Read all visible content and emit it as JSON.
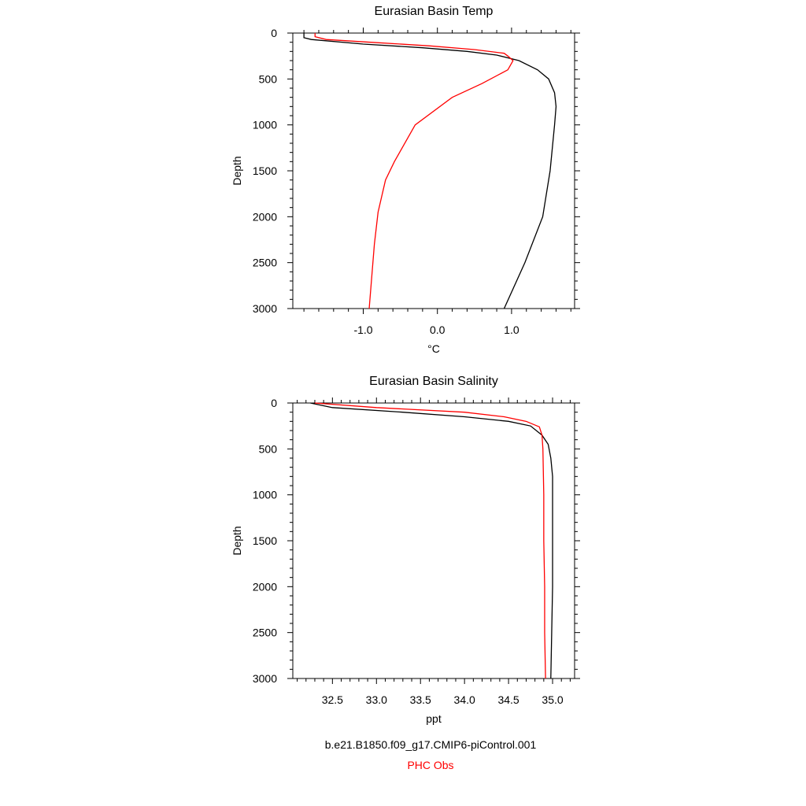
{
  "chart_data": [
    {
      "type": "line",
      "title": "Eurasian Basin Temp",
      "xlabel": "°C",
      "ylabel": "Depth",
      "xlim": [
        -1.95,
        1.85
      ],
      "ylim": [
        3000,
        0
      ],
      "y_inverted": true,
      "x_ticks": [
        "-1.0",
        "0.0",
        "1.0"
      ],
      "x_tick_values": [
        -1.0,
        0.0,
        1.0
      ],
      "y_ticks": [
        "0",
        "500",
        "1000",
        "1500",
        "2000",
        "2500",
        "3000"
      ],
      "y_tick_values": [
        0,
        500,
        1000,
        1500,
        2000,
        2500,
        3000
      ],
      "grid": false,
      "series": [
        {
          "color": "#000000",
          "points": [
            [
              -1.8,
              0
            ],
            [
              -1.8,
              50
            ],
            [
              -1.7,
              70
            ],
            [
              -1.0,
              120
            ],
            [
              -0.2,
              160
            ],
            [
              0.4,
              200
            ],
            [
              0.8,
              240
            ],
            [
              1.1,
              300
            ],
            [
              1.35,
              400
            ],
            [
              1.5,
              500
            ],
            [
              1.58,
              650
            ],
            [
              1.6,
              800
            ],
            [
              1.58,
              1000
            ],
            [
              1.52,
              1500
            ],
            [
              1.42,
              2000
            ],
            [
              1.18,
              2500
            ],
            [
              0.9,
              3000
            ]
          ]
        },
        {
          "color": "#ff0000",
          "points": [
            [
              -1.65,
              0
            ],
            [
              -1.65,
              40
            ],
            [
              -1.5,
              70
            ],
            [
              -0.9,
              100
            ],
            [
              -0.1,
              140
            ],
            [
              0.5,
              180
            ],
            [
              0.9,
              220
            ],
            [
              0.95,
              250
            ],
            [
              1.02,
              300
            ],
            [
              0.95,
              400
            ],
            [
              0.6,
              550
            ],
            [
              0.2,
              700
            ],
            [
              -0.3,
              1000
            ],
            [
              -0.58,
              1400
            ],
            [
              -0.7,
              1600
            ],
            [
              -0.8,
              1950
            ],
            [
              -0.85,
              2300
            ],
            [
              -0.92,
              3000
            ]
          ]
        }
      ]
    },
    {
      "type": "line",
      "title": "Eurasian Basin Salinity",
      "xlabel": "ppt",
      "ylabel": "Depth",
      "xlim": [
        32.05,
        35.25
      ],
      "ylim": [
        3000,
        0
      ],
      "y_inverted": true,
      "x_ticks": [
        "32.5",
        "33.0",
        "33.5",
        "34.0",
        "34.5",
        "35.0"
      ],
      "x_tick_values": [
        32.5,
        33.0,
        33.5,
        34.0,
        34.5,
        35.0
      ],
      "y_ticks": [
        "0",
        "500",
        "1000",
        "1500",
        "2000",
        "2500",
        "3000"
      ],
      "y_tick_values": [
        0,
        500,
        1000,
        1500,
        2000,
        2500,
        3000
      ],
      "grid": false,
      "series": [
        {
          "color": "#000000",
          "points": [
            [
              32.25,
              0
            ],
            [
              32.5,
              50
            ],
            [
              33.3,
              100
            ],
            [
              34.0,
              150
            ],
            [
              34.5,
              200
            ],
            [
              34.75,
              250
            ],
            [
              34.88,
              350
            ],
            [
              34.95,
              450
            ],
            [
              34.98,
              600
            ],
            [
              35.0,
              800
            ],
            [
              35.0,
              1000
            ],
            [
              35.0,
              1500
            ],
            [
              35.0,
              2000
            ],
            [
              34.99,
              2500
            ],
            [
              34.98,
              3000
            ]
          ]
        },
        {
          "color": "#ff0000",
          "points": [
            [
              32.3,
              0
            ],
            [
              33.0,
              50
            ],
            [
              34.0,
              100
            ],
            [
              34.45,
              150
            ],
            [
              34.7,
              200
            ],
            [
              34.85,
              260
            ],
            [
              34.88,
              350
            ],
            [
              34.89,
              500
            ],
            [
              34.9,
              1000
            ],
            [
              34.9,
              1500
            ],
            [
              34.91,
              2000
            ],
            [
              34.91,
              2500
            ],
            [
              34.92,
              3000
            ]
          ]
        }
      ]
    }
  ],
  "legend": {
    "case_label": "b.e21.B1850.f09_g17.CMIP6-piControl.001",
    "obs_label": "PHC Obs",
    "case_color": "#000000",
    "obs_color": "#ff0000"
  }
}
